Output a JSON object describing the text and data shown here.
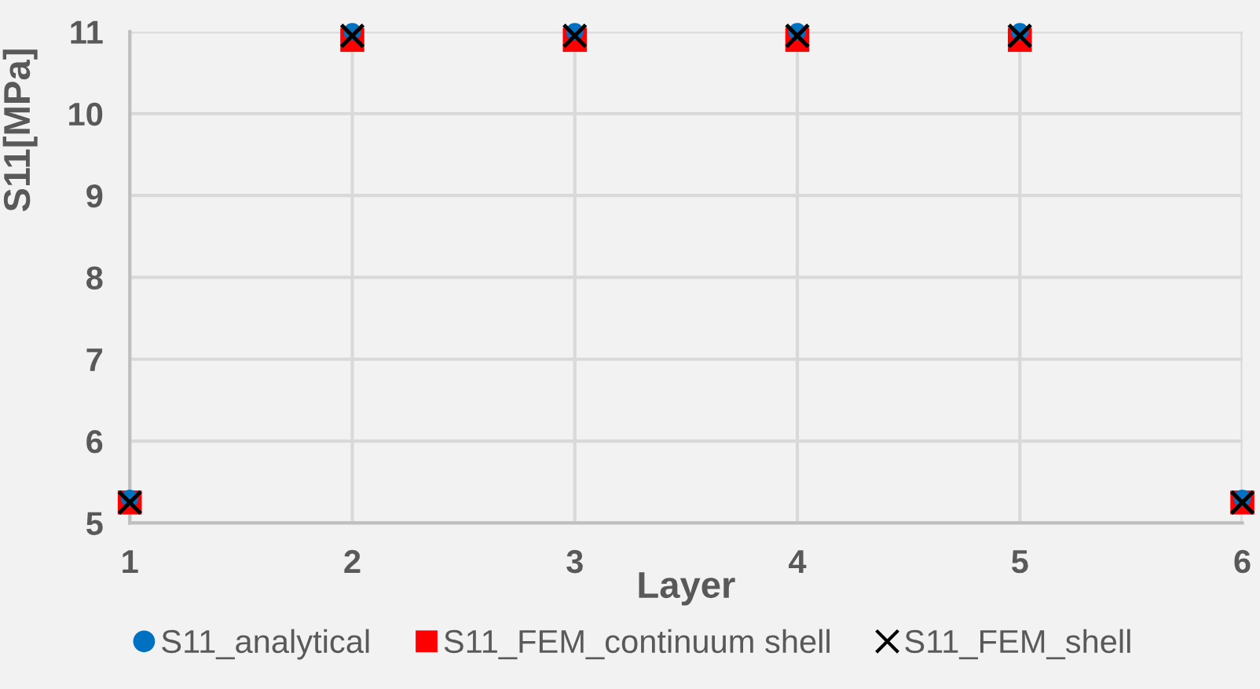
{
  "chart_data": {
    "type": "scatter",
    "xlabel": "Layer",
    "ylabel": "S11[MPa]",
    "x": [
      1,
      2,
      3,
      4,
      5,
      6
    ],
    "series": [
      {
        "name": "S11_analytical",
        "color": "#0070c0",
        "marker": "circle",
        "values": [
          5.3,
          11,
          11,
          11,
          11,
          5.3
        ]
      },
      {
        "name": "S11_FEM_continuum shell",
        "color": "#ff0000",
        "marker": "square",
        "values": [
          5.25,
          10.9,
          10.9,
          10.9,
          10.9,
          5.25
        ]
      },
      {
        "name": "S11_FEM_shell",
        "color": "#000000",
        "marker": "cross",
        "values": [
          5.25,
          10.95,
          10.95,
          10.95,
          10.95,
          5.25
        ]
      }
    ],
    "xlim": [
      1,
      6
    ],
    "xticks": [
      1,
      2,
      3,
      4,
      5,
      6
    ],
    "ylim": [
      5,
      11
    ],
    "yticks": [
      5,
      6,
      7,
      8,
      9,
      10,
      11
    ],
    "grid": true,
    "legend": "bottom"
  }
}
